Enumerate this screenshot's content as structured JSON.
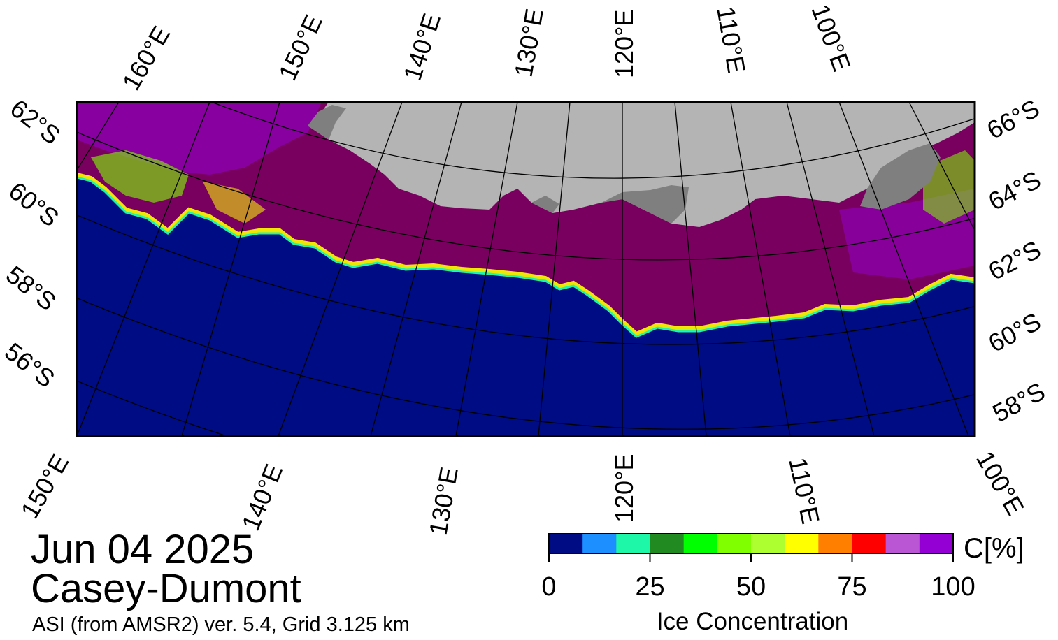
{
  "title": {
    "date": "Jun 04 2025",
    "region": "Casey-Dumont",
    "product": "ASI (from AMSR2) ver. 5.4,  Grid 3.125 km"
  },
  "map": {
    "top_longitude_labels": [
      "160°E",
      "150°E",
      "140°E",
      "130°E",
      "120°E",
      "110°E",
      "100°E"
    ],
    "bottom_longitude_labels": [
      "150°E",
      "140°E",
      "130°E",
      "120°E",
      "110°E",
      "100°E"
    ],
    "left_latitude_labels": [
      "62°S",
      "60°S",
      "58°S",
      "56°S"
    ],
    "right_latitude_labels": [
      "66°S",
      "64°S",
      "62°S",
      "60°S",
      "58°S"
    ],
    "colors": {
      "ocean": "#000c84",
      "land": "#b4b4b4",
      "ice_shelf": "#7f7f7f",
      "full_ice": "#7a0060"
    }
  },
  "colorbar": {
    "unit_label": "C[%]",
    "title": "Ice Concentration",
    "ticks": [
      "0",
      "25",
      "50",
      "75",
      "100"
    ],
    "colors": [
      "#000c84",
      "#1e8fff",
      "#1ef7a8",
      "#218a21",
      "#00ff00",
      "#7fff00",
      "#adff2f",
      "#ffff00",
      "#ff7f00",
      "#ff0000",
      "#ba55d3",
      "#9400d3"
    ]
  }
}
